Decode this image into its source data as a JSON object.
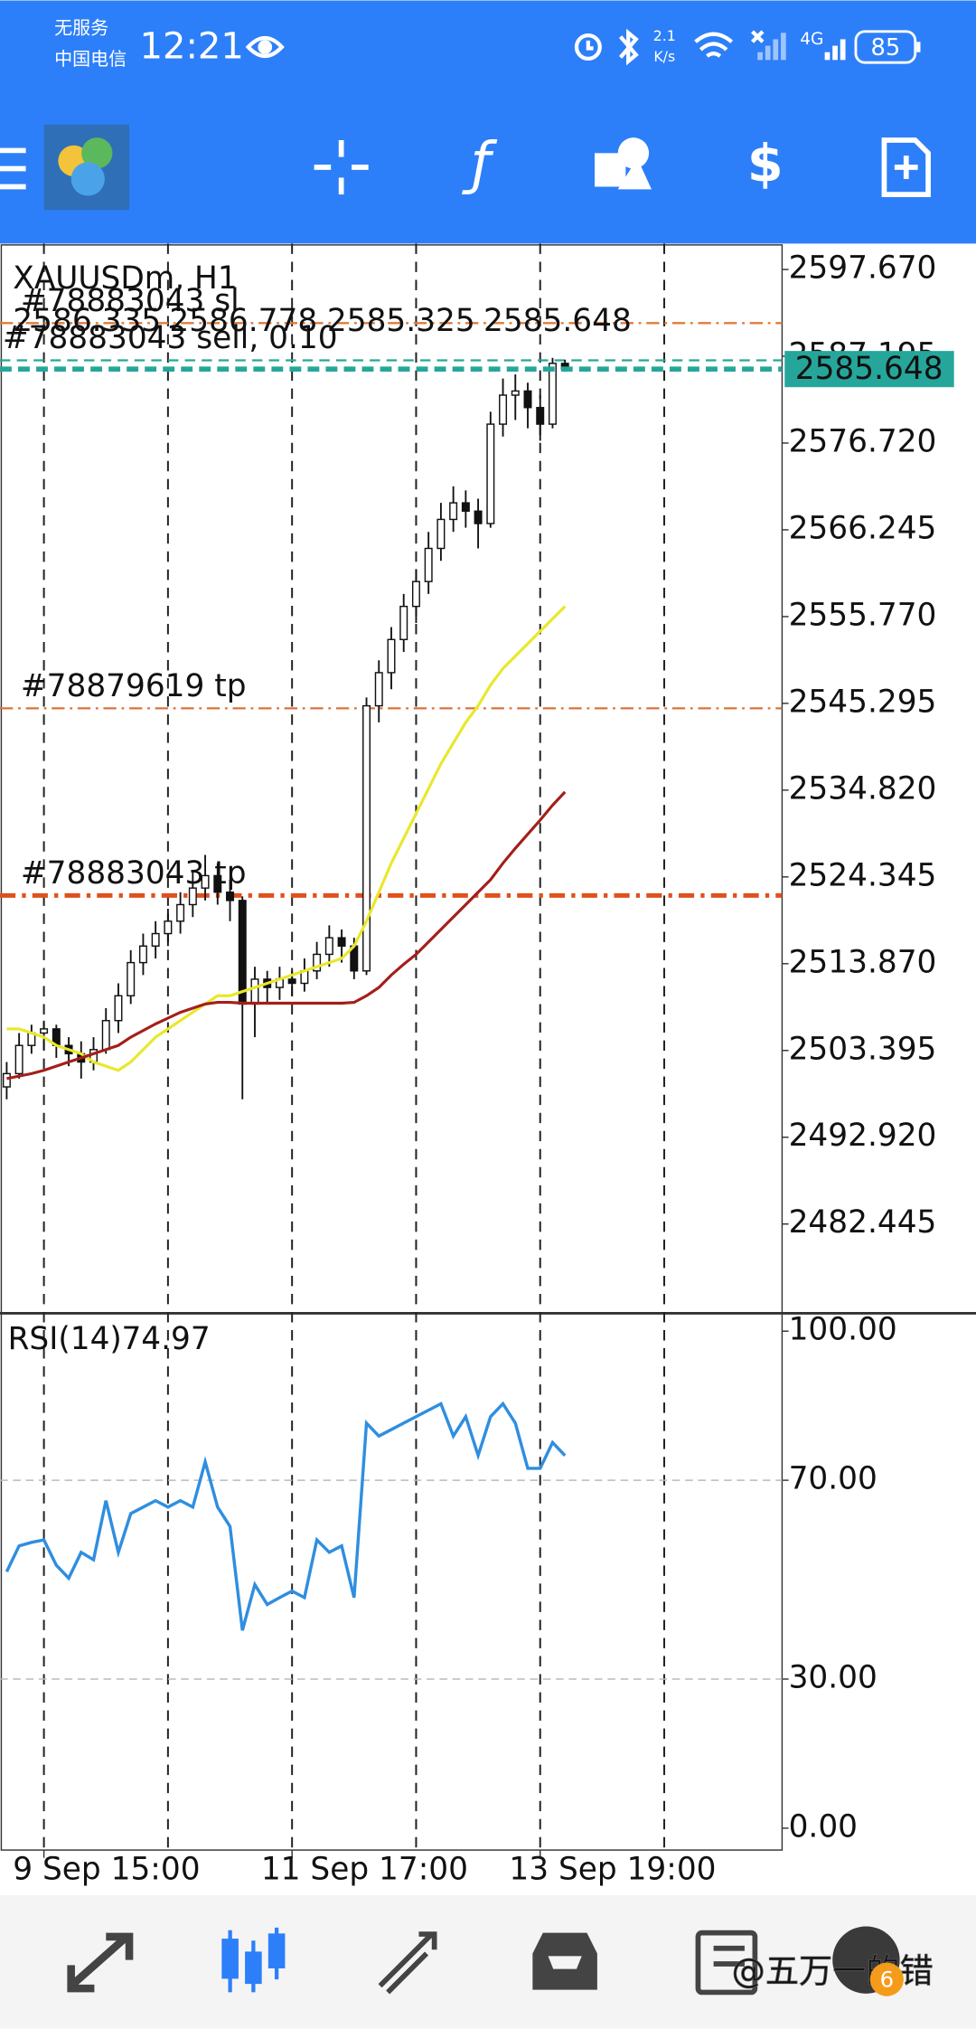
{
  "status_bar": {
    "carrier_1": "无服务",
    "carrier_2": "中国电信",
    "time": "12:21",
    "net_speed": "2.1",
    "net_unit": "K/s",
    "network": "4G",
    "battery": "85"
  },
  "chart_data": [
    {
      "type": "candlestick",
      "title": "XAUUSDm, H1",
      "candles": [
        [
          2499.0,
          2502.0,
          2497.5,
          2500.6
        ],
        [
          2500.6,
          2505.5,
          2500.0,
          2504.0
        ],
        [
          2504.0,
          2506.5,
          2503.0,
          2505.5
        ],
        [
          2505.5,
          2507.0,
          2503.5,
          2506.0
        ],
        [
          2506.0,
          2506.5,
          2502.5,
          2504.0
        ],
        [
          2504.0,
          2505.0,
          2501.5,
          2503.0
        ],
        [
          2503.0,
          2504.5,
          2500.0,
          2502.0
        ],
        [
          2502.0,
          2505.0,
          2501.0,
          2503.5
        ],
        [
          2503.5,
          2508.5,
          2503.0,
          2507.0
        ],
        [
          2507.0,
          2511.5,
          2505.5,
          2510.0
        ],
        [
          2510.0,
          2515.5,
          2509.0,
          2514.0
        ],
        [
          2514.0,
          2517.5,
          2512.5,
          2516.0
        ],
        [
          2516.0,
          2519.0,
          2514.5,
          2517.5
        ],
        [
          2517.5,
          2520.5,
          2516.0,
          2519.0
        ],
        [
          2519.0,
          2522.5,
          2517.5,
          2521.0
        ],
        [
          2521.0,
          2525.0,
          2519.5,
          2523.0
        ],
        [
          2523.0,
          2527.0,
          2521.5,
          2524.5
        ],
        [
          2524.5,
          2526.0,
          2521.0,
          2522.5
        ],
        [
          2522.5,
          2524.0,
          2519.0,
          2521.5
        ],
        [
          2521.5,
          2522.0,
          2497.5,
          2509.0
        ],
        [
          2509.0,
          2513.5,
          2505.0,
          2512.0
        ],
        [
          2512.0,
          2513.0,
          2509.0,
          2511.0
        ],
        [
          2511.0,
          2513.5,
          2509.5,
          2512.0
        ],
        [
          2512.0,
          2513.0,
          2510.0,
          2511.5
        ],
        [
          2511.5,
          2514.5,
          2510.5,
          2513.0
        ],
        [
          2513.0,
          2516.5,
          2512.0,
          2515.0
        ],
        [
          2515.0,
          2518.5,
          2513.5,
          2517.0
        ],
        [
          2517.0,
          2518.0,
          2514.0,
          2516.0
        ],
        [
          2516.0,
          2517.0,
          2512.0,
          2513.0
        ],
        [
          2513.0,
          2546.0,
          2512.5,
          2545.0
        ],
        [
          2545.0,
          2550.5,
          2543.0,
          2549.0
        ],
        [
          2549.0,
          2554.5,
          2547.0,
          2553.0
        ],
        [
          2553.0,
          2558.5,
          2551.5,
          2557.0
        ],
        [
          2557.0,
          2561.5,
          2555.0,
          2560.0
        ],
        [
          2560.0,
          2566.0,
          2558.5,
          2564.0
        ],
        [
          2564.0,
          2569.5,
          2562.5,
          2567.5
        ],
        [
          2567.5,
          2571.5,
          2566.0,
          2569.5
        ],
        [
          2569.5,
          2571.0,
          2566.5,
          2568.5
        ],
        [
          2568.5,
          2570.0,
          2564.0,
          2567.0
        ],
        [
          2567.0,
          2580.5,
          2566.5,
          2579.0
        ],
        [
          2579.0,
          2584.5,
          2577.5,
          2582.5
        ],
        [
          2582.5,
          2585.0,
          2579.5,
          2583.0
        ],
        [
          2583.0,
          2584.0,
          2578.5,
          2581.0
        ],
        [
          2581.0,
          2582.5,
          2577.0,
          2579.0
        ],
        [
          2579.0,
          2587.0,
          2578.5,
          2586.335
        ],
        [
          2586.335,
          2586.778,
          2585.325,
          2585.648
        ]
      ],
      "series": [
        {
          "color": "#e8e82a",
          "values": [
            2506,
            2506,
            2505.5,
            2505,
            2504,
            2503.5,
            2503,
            2502,
            2501.5,
            2501,
            2502,
            2503.5,
            2505,
            2506,
            2507,
            2508,
            2509,
            2510,
            2510,
            2510.5,
            2511,
            2511.5,
            2512,
            2512.5,
            2513,
            2513.5,
            2514,
            2514.5,
            2516,
            2519,
            2522.5,
            2526,
            2529,
            2532,
            2535,
            2538,
            2540.5,
            2543,
            2545,
            2547.5,
            2549.5,
            2551,
            2552.5,
            2554,
            2555.5,
            2557
          ]
        },
        {
          "color": "#a31f1a",
          "values": [
            2500,
            2500.3,
            2500.6,
            2501,
            2501.5,
            2502,
            2502.5,
            2503,
            2503.5,
            2504,
            2505,
            2505.8,
            2506.6,
            2507.3,
            2508,
            2508.5,
            2509,
            2509.2,
            2509.2,
            2509.1,
            2509.1,
            2509.1,
            2509.1,
            2509.1,
            2509.1,
            2509.1,
            2509.1,
            2509.1,
            2509.2,
            2510,
            2511,
            2512.5,
            2513.8,
            2515,
            2516.5,
            2518,
            2519.5,
            2521,
            2522.5,
            2524,
            2526,
            2527.8,
            2529.5,
            2531.2,
            2533,
            2534.6
          ]
        }
      ],
      "orders": [
        {
          "label": "#78883043 sl",
          "price": 2591.2,
          "color": "#e07b39",
          "style": "dashdot"
        },
        {
          "label": "#78883043 sell, 0.10",
          "price": 2586.7,
          "color": "#26a69a",
          "style": "dashed"
        },
        {
          "label": "#78879619 tp",
          "price": 2544.7,
          "color": "#d9733a",
          "style": "dashdot"
        },
        {
          "label": "#78883043 tp",
          "price": 2522.1,
          "color": "#e0501a",
          "style": "dashdot-bold"
        }
      ],
      "price_color": "#26a69a",
      "xlim": [
        -0.54,
        62.5
      ],
      "xgrid": [
        3,
        13,
        23,
        33,
        43,
        53
      ],
      "xticks": [
        {
          "value": 3,
          "label": "9 Sep 15:00"
        },
        {
          "value": 23,
          "label": "11 Sep 17:00"
        },
        {
          "value": 43,
          "label": "13 Sep 19:00"
        }
      ],
      "ylim": [
        2471.67,
        2600.79
      ],
      "yticks": [
        {
          "value": 2597.67,
          "label": "2597.670"
        },
        2587.195,
        {
          "value": 2576.72,
          "label": "2576.720"
        },
        2566.245,
        {
          "value": 2555.77,
          "label": "2555.770"
        },
        2545.295,
        {
          "value": 2534.82,
          "label": "2534.820"
        },
        2524.345,
        {
          "value": 2513.87,
          "label": "2513.870"
        },
        2503.395,
        {
          "value": 2492.92,
          "label": "2492.920"
        },
        2482.445
      ]
    },
    {
      "type": "line",
      "title": "RSI(14)",
      "color": "#2f8ee0",
      "values": [
        51.6,
        56.8,
        57.5,
        58,
        52.9,
        50.3,
        55.5,
        54,
        65.9,
        55.5,
        63.3,
        64.6,
        65.9,
        64.6,
        65.9,
        64.6,
        73.7,
        64.6,
        60.7,
        39.8,
        49,
        45,
        46.4,
        47.7,
        46.4,
        58,
        55.5,
        56.8,
        46.4,
        81.5,
        78.9,
        80.2,
        81.5,
        82.8,
        84.1,
        85.4,
        78.9,
        82.8,
        75,
        82.8,
        85.4,
        81.5,
        72.4,
        72.4,
        77.6,
        74.97
      ],
      "ylim": [
        -4.4,
        103.6
      ],
      "yticks": [
        {
          "value": 100,
          "label": "100.00"
        },
        {
          "value": 70,
          "label": "70.00"
        },
        {
          "value": 30,
          "label": "30.00"
        },
        {
          "value": 0,
          "label": "0.00"
        }
      ]
    }
  ],
  "watermark": "@五万一的错",
  "badge": "6"
}
